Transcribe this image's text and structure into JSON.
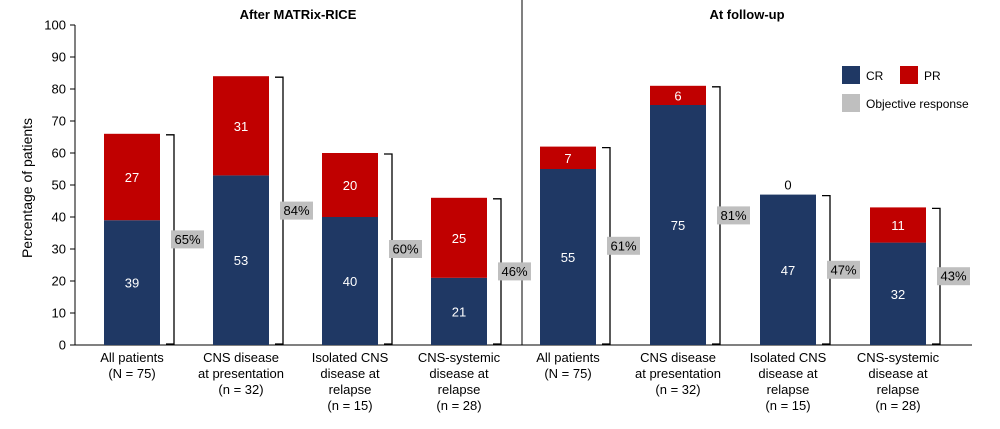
{
  "chart_data": {
    "type": "bar",
    "stacked": true,
    "ylabel": "Percentage of patients",
    "ylim": [
      0,
      100
    ],
    "yticks": [
      0,
      10,
      20,
      30,
      40,
      50,
      60,
      70,
      80,
      90,
      100
    ],
    "grid": false,
    "legend_position": "right",
    "legend": [
      {
        "key": "cr",
        "label": "CR",
        "color": "#1f3864"
      },
      {
        "key": "pr",
        "label": "PR",
        "color": "#c00000"
      },
      {
        "key": "or",
        "label": "Objective response",
        "color": "#bfbfbf"
      }
    ],
    "panels": [
      {
        "title": "After MATRix-RICE",
        "categories": [
          [
            "All patients",
            "(N = 75)"
          ],
          [
            "CNS disease",
            "at presentation",
            "(n = 32)"
          ],
          [
            "Isolated CNS",
            "disease at",
            "relapse",
            "(n = 15)"
          ],
          [
            "CNS-systemic",
            "disease at",
            "relapse",
            "(n = 28)"
          ]
        ],
        "cr": [
          39,
          53,
          40,
          21
        ],
        "pr": [
          27,
          31,
          20,
          25
        ],
        "objective_response": [
          "65%",
          "84%",
          "60%",
          "46%"
        ],
        "objective_response_values": [
          65,
          84,
          60,
          46
        ]
      },
      {
        "title": "At follow-up",
        "categories": [
          [
            "All patients",
            "(N = 75)"
          ],
          [
            "CNS disease",
            "at presentation",
            "(n = 32)"
          ],
          [
            "Isolated CNS",
            "disease at",
            "relapse",
            "(n = 15)"
          ],
          [
            "CNS-systemic",
            "disease at",
            "relapse",
            "(n = 28)"
          ]
        ],
        "cr": [
          55,
          75,
          47,
          32
        ],
        "pr": [
          7,
          6,
          0,
          11
        ],
        "objective_response": [
          "61%",
          "81%",
          "47%",
          "43%"
        ],
        "objective_response_values": [
          61,
          81,
          47,
          43
        ]
      }
    ]
  }
}
